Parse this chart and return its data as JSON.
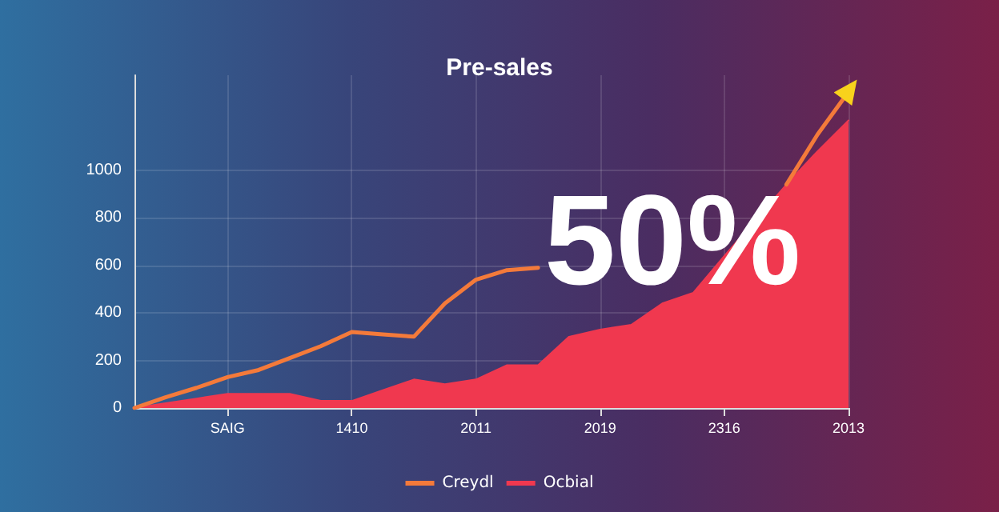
{
  "chart_data": {
    "type": "line",
    "title": "Pre-sales",
    "categories": [
      null,
      null,
      null,
      "SAIG",
      null,
      null,
      null,
      "1410",
      null,
      null,
      null,
      "2011",
      null,
      null,
      null,
      "2019",
      null,
      null,
      null,
      "2316",
      null,
      null,
      null,
      "2013"
    ],
    "ylim": [
      0,
      1400
    ],
    "yticks": [
      0,
      200,
      400,
      600,
      800,
      1000
    ],
    "series": [
      {
        "name": "Creydl",
        "color": "#f47a3a",
        "values": [
          0,
          45,
          85,
          130,
          160,
          210,
          260,
          320,
          310,
          300,
          440,
          540,
          580,
          590,
          null,
          null,
          null,
          null,
          null,
          null,
          null,
          940,
          1150,
          1330
        ]
      },
      {
        "name": "Ocbial",
        "type": "area",
        "color": "#f0384f",
        "values": [
          0,
          20,
          40,
          60,
          60,
          60,
          30,
          30,
          75,
          120,
          100,
          120,
          180,
          180,
          300,
          330,
          350,
          440,
          485,
          640,
          790,
          940,
          1080,
          1210
        ]
      }
    ],
    "annotations": [
      "50%"
    ],
    "grid": true,
    "legend": "bottom",
    "marker": "none",
    "line_style": "solid"
  }
}
